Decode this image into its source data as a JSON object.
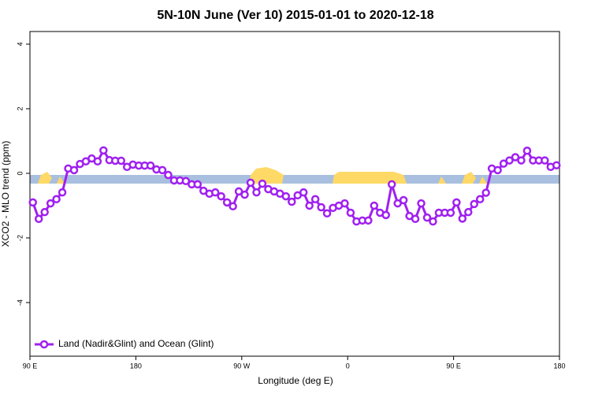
{
  "chart_data": {
    "type": "line",
    "title": "5N-10N June (Ver 10)   2015-01-01 to 2020-12-18",
    "x_label": "Longitude (deg E)",
    "y_label": "XCO2 - MLO trend (ppm)",
    "xlim": [
      90,
      540
    ],
    "ylim": [
      -5.66,
      4.39
    ],
    "xticks": [
      {
        "value": 90,
        "label": "90 E"
      },
      180,
      {
        "value": 270,
        "label": "90 W"
      },
      {
        "value": 360,
        "label": "0"
      },
      {
        "value": 450,
        "label": "90 E"
      },
      {
        "value": 540,
        "label": "180"
      }
    ],
    "yticks": [
      -4,
      -2,
      0,
      2,
      4
    ],
    "legend": "bottom-left",
    "x": [
      92.5,
      97.5,
      102.5,
      107.5,
      112.5,
      117.5,
      122.5,
      127.5,
      132.5,
      137.5,
      142.5,
      147.5,
      152.5,
      157.5,
      162.5,
      167.5,
      172.5,
      177.5,
      182.5,
      187.5,
      192.5,
      197.5,
      202.5,
      207.5,
      212.5,
      217.5,
      222.5,
      227.5,
      232.5,
      237.5,
      242.5,
      247.5,
      252.5,
      257.5,
      262.5,
      267.5,
      272.5,
      277.5,
      282.5,
      287.5,
      292.5,
      297.5,
      302.5,
      307.5,
      312.5,
      317.5,
      322.5,
      327.5,
      332.5,
      337.5,
      342.5,
      347.5,
      352.5,
      357.5,
      362.5,
      367.5,
      372.5,
      377.5,
      382.5,
      387.5,
      392.5,
      397.5,
      402.5,
      407.5,
      412.5,
      417.5,
      422.5,
      427.5,
      432.5,
      437.5,
      442.5,
      447.5,
      452.5,
      457.5,
      462.5,
      467.5,
      472.5,
      477.5,
      482.5,
      487.5,
      492.5,
      497.5,
      502.5,
      507.5,
      512.5,
      517.5,
      522.5,
      527.5,
      532.5,
      537.5
    ],
    "series": [
      {
        "name": "Land (Nadir&Glint) and Ocean (Glint)",
        "color": "#a020f0",
        "values": [
          -0.9,
          -1.41,
          -1.2,
          -0.93,
          -0.8,
          -0.59,
          0.15,
          0.1,
          0.29,
          0.37,
          0.46,
          0.37,
          0.71,
          0.41,
          0.39,
          0.39,
          0.2,
          0.27,
          0.24,
          0.24,
          0.24,
          0.12,
          0.1,
          -0.05,
          -0.22,
          -0.22,
          -0.24,
          -0.34,
          -0.34,
          -0.54,
          -0.63,
          -0.59,
          -0.71,
          -0.9,
          -1.02,
          -0.56,
          -0.66,
          -0.29,
          -0.59,
          -0.32,
          -0.49,
          -0.56,
          -0.63,
          -0.71,
          -0.88,
          -0.68,
          -0.59,
          -1.0,
          -0.8,
          -1.05,
          -1.24,
          -1.07,
          -1.0,
          -0.93,
          -1.22,
          -1.49,
          -1.46,
          -1.46,
          -1.0,
          -1.22,
          -1.29,
          -0.34,
          -0.93,
          -0.83,
          -1.32,
          -1.41,
          -0.93,
          -1.37,
          -1.49,
          -1.22,
          -1.22,
          -1.22,
          -0.9,
          -1.4,
          -1.2,
          -0.95,
          -0.8,
          -0.6,
          0.15,
          0.1,
          0.3,
          0.4,
          0.5,
          0.4,
          0.7,
          0.4,
          0.4,
          0.4,
          0.2,
          0.25
        ]
      }
    ]
  }
}
